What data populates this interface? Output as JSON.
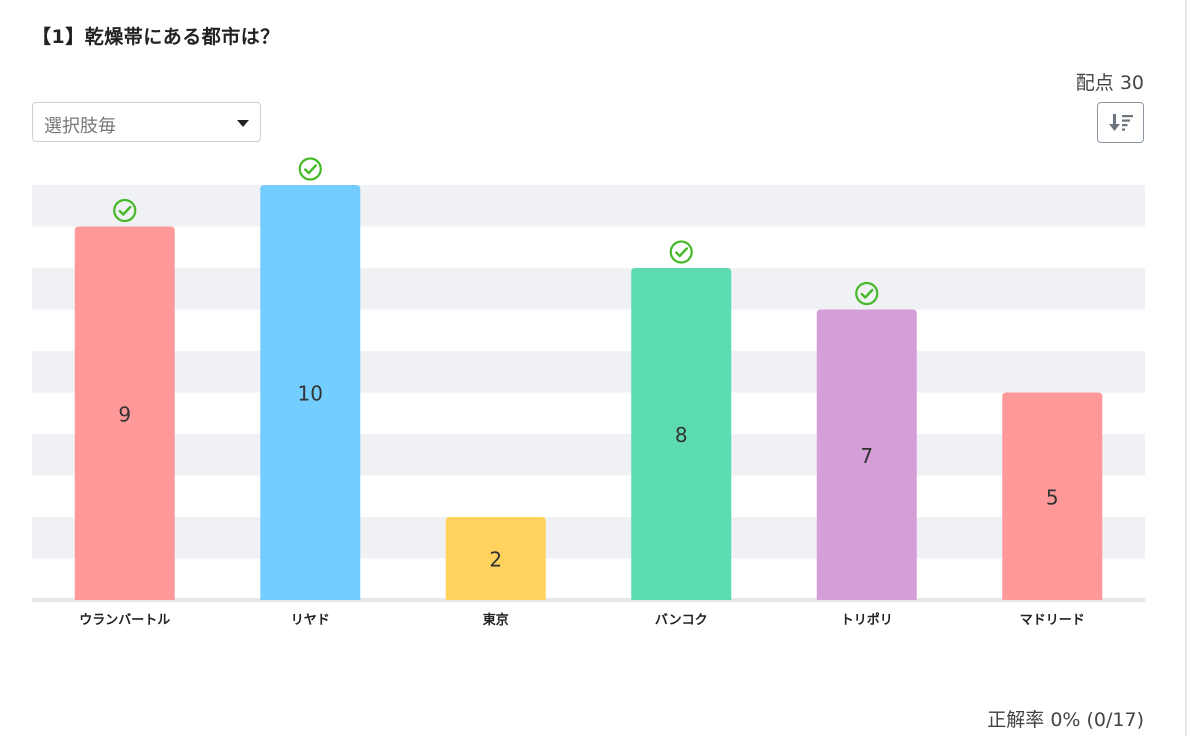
{
  "question": {
    "title": "【1】乾燥帯にある都市は？",
    "score_label": "配点 30"
  },
  "controls": {
    "select_value": "選択肢毎",
    "sort_icon": "sort-descending-icon"
  },
  "footer": {
    "accuracy": "正解率 0% (0/17)"
  },
  "chart_data": {
    "type": "bar",
    "categories": [
      "ウランバートル",
      "リヤド",
      "東京",
      "バンコク",
      "トリポリ",
      "マドリード"
    ],
    "values": [
      9,
      10,
      2,
      8,
      7,
      5
    ],
    "colors": [
      "#ff9999",
      "#73cdff",
      "#ffd25e",
      "#5ddcb4",
      "#d49ed8",
      "#ff9999"
    ],
    "correct": [
      true,
      true,
      false,
      true,
      true,
      false
    ],
    "correct_icon": "check-circle-icon",
    "correct_icon_color": "#46b928",
    "ylim": [
      0,
      10
    ],
    "grid": true,
    "grid_color": "#f0f1f5",
    "xlabel": "",
    "ylabel": ""
  }
}
